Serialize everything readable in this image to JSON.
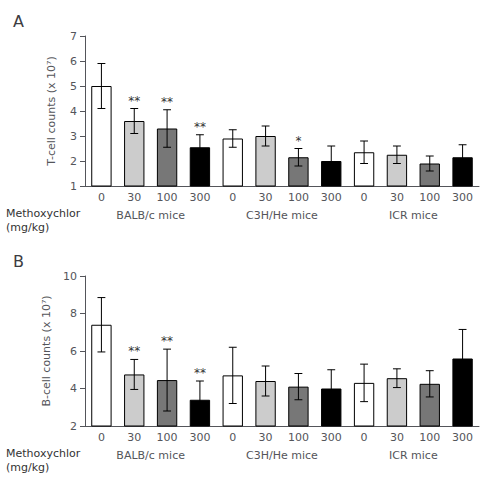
{
  "chart_data": [
    {
      "type": "bar",
      "title": "A",
      "ylabel": "T-cell counts (x 10⁷)",
      "xlabel": "Methoxychlor\n(mg/kg)",
      "groups": [
        "BALB/c mice",
        "C3H/He mice",
        "ICR mice"
      ],
      "categories": [
        "0",
        "30",
        "100",
        "300",
        "0",
        "30",
        "100",
        "300",
        "0",
        "30",
        "100",
        "300"
      ],
      "values": [
        5.0,
        3.6,
        3.3,
        2.55,
        2.9,
        3.0,
        2.15,
        2.0,
        2.35,
        2.25,
        1.9,
        2.15
      ],
      "errors": [
        0.9,
        0.5,
        0.75,
        0.5,
        0.35,
        0.4,
        0.35,
        0.6,
        0.45,
        0.35,
        0.3,
        0.5
      ],
      "significance": [
        null,
        "**",
        "**",
        "**",
        null,
        null,
        "*",
        null,
        null,
        null,
        null,
        null
      ],
      "colors": [
        "white",
        "#cccccc",
        "#777777",
        "black",
        "white",
        "#cccccc",
        "#777777",
        "black",
        "white",
        "#cccccc",
        "#777777",
        "black"
      ],
      "ylim": [
        1,
        7
      ],
      "yticks": [
        1,
        2,
        3,
        4,
        5,
        6,
        7
      ],
      "grid": false
    },
    {
      "type": "bar",
      "title": "B",
      "ylabel": "B-cell counts (x 10⁷)",
      "xlabel": "Methoxychlor\n(mg/kg)",
      "groups": [
        "BALB/c mice",
        "C3H/He mice",
        "ICR mice"
      ],
      "categories": [
        "0",
        "30",
        "100",
        "300",
        "0",
        "30",
        "100",
        "300",
        "0",
        "30",
        "100",
        "300"
      ],
      "values": [
        7.4,
        4.75,
        4.45,
        3.4,
        4.7,
        4.4,
        4.1,
        4.0,
        4.3,
        4.55,
        4.25,
        5.6
      ],
      "errors": [
        1.45,
        0.8,
        1.65,
        1.0,
        1.5,
        0.8,
        0.7,
        1.0,
        1.0,
        0.5,
        0.7,
        1.55
      ],
      "significance": [
        null,
        "**",
        "**",
        "**",
        null,
        null,
        null,
        null,
        null,
        null,
        null,
        null
      ],
      "colors": [
        "white",
        "#cccccc",
        "#777777",
        "black",
        "white",
        "#cccccc",
        "#777777",
        "black",
        "white",
        "#cccccc",
        "#777777",
        "black"
      ],
      "ylim": [
        2,
        10
      ],
      "yticks": [
        2,
        4,
        6,
        8,
        10
      ],
      "grid": false
    }
  ]
}
